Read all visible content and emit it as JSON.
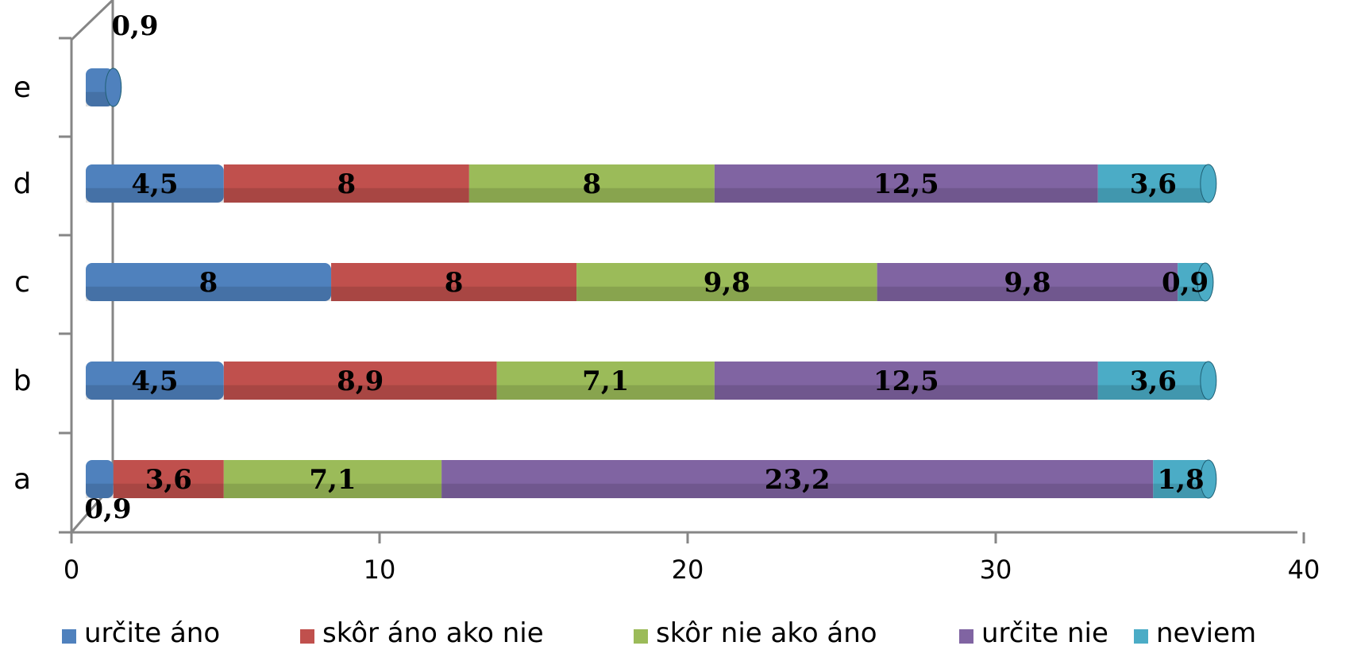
{
  "chart_data": {
    "type": "bar",
    "orientation": "horizontal",
    "stacked": true,
    "style": "3d-cylinder",
    "categories": [
      "a",
      "b",
      "c",
      "d",
      "e"
    ],
    "series": [
      {
        "name": "určite áno",
        "color": "#4F81BD",
        "values": [
          0.9,
          4.5,
          8,
          4.5,
          0.9
        ]
      },
      {
        "name": "skôr áno ako nie",
        "color": "#C0504D",
        "values": [
          3.6,
          8.9,
          8,
          8,
          0
        ]
      },
      {
        "name": "skôr nie ako áno",
        "color": "#9BBB59",
        "values": [
          7.1,
          7.1,
          9.8,
          8,
          0
        ]
      },
      {
        "name": "určite nie",
        "color": "#8064A2",
        "values": [
          23.2,
          12.5,
          9.8,
          12.5,
          0
        ]
      },
      {
        "name": "neviem",
        "color": "#4BACC6",
        "values": [
          1.8,
          3.6,
          0.9,
          3.6,
          0
        ]
      }
    ],
    "xlim": [
      0,
      40
    ],
    "xticks": [
      0,
      10,
      20,
      30,
      40
    ],
    "legend_position": "bottom",
    "grid": false
  }
}
